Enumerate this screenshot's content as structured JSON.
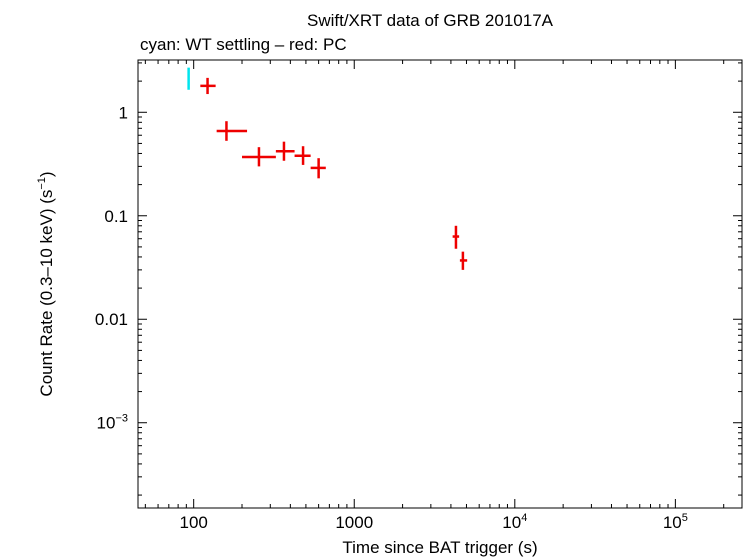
{
  "chart_data": {
    "type": "scatter",
    "title": "Swift/XRT data of GRB 201017A",
    "subtitle": "cyan: WT settling – red: PC",
    "xlabel": "Time since BAT trigger (s)",
    "ylabel": {
      "main": "Count Rate (0.3–10 keV) (s",
      "sup": "−1",
      "close": ")"
    },
    "xscale": "log",
    "yscale": "log",
    "xlim": [
      45,
      260000
    ],
    "ylim": [
      0.00015,
      3.2
    ],
    "grid": false,
    "legend": "none (series described in subtitle)",
    "xticks": [
      {
        "value": 100,
        "base": "100",
        "sup": ""
      },
      {
        "value": 1000,
        "base": "1000",
        "sup": ""
      },
      {
        "value": 10000,
        "base": "10",
        "sup": "4"
      },
      {
        "value": 100000,
        "base": "10",
        "sup": "5"
      }
    ],
    "yticks": [
      {
        "value": 1,
        "base": "1",
        "sup": ""
      },
      {
        "value": 0.1,
        "base": "0.1",
        "sup": ""
      },
      {
        "value": 0.01,
        "base": "0.01",
        "sup": ""
      },
      {
        "value": 0.001,
        "base": "10",
        "sup": "−3"
      }
    ],
    "series": [
      {
        "color": "#00e5ee",
        "points": [
          {
            "x": 93,
            "xlo": 92,
            "xhi": 94,
            "y": 2.2,
            "ylo": 1.65,
            "yhi": 2.7
          }
        ]
      },
      {
        "color": "#ee0000",
        "points": [
          {
            "x": 122,
            "xlo": 110,
            "xhi": 137,
            "y": 1.8,
            "ylo": 1.5,
            "yhi": 2.15
          },
          {
            "x": 160,
            "xlo": 139,
            "xhi": 215,
            "y": 0.66,
            "ylo": 0.53,
            "yhi": 0.82
          },
          {
            "x": 255,
            "xlo": 200,
            "xhi": 325,
            "y": 0.37,
            "ylo": 0.3,
            "yhi": 0.46
          },
          {
            "x": 365,
            "xlo": 325,
            "xhi": 425,
            "y": 0.42,
            "ylo": 0.34,
            "yhi": 0.52
          },
          {
            "x": 480,
            "xlo": 425,
            "xhi": 535,
            "y": 0.38,
            "ylo": 0.31,
            "yhi": 0.47
          },
          {
            "x": 600,
            "xlo": 535,
            "xhi": 665,
            "y": 0.29,
            "ylo": 0.23,
            "yhi": 0.36
          },
          {
            "x": 4300,
            "xlo": 4100,
            "xhi": 4500,
            "y": 0.063,
            "ylo": 0.048,
            "yhi": 0.08
          },
          {
            "x": 4750,
            "xlo": 4550,
            "xhi": 5050,
            "y": 0.037,
            "ylo": 0.03,
            "yhi": 0.045
          }
        ]
      }
    ]
  }
}
